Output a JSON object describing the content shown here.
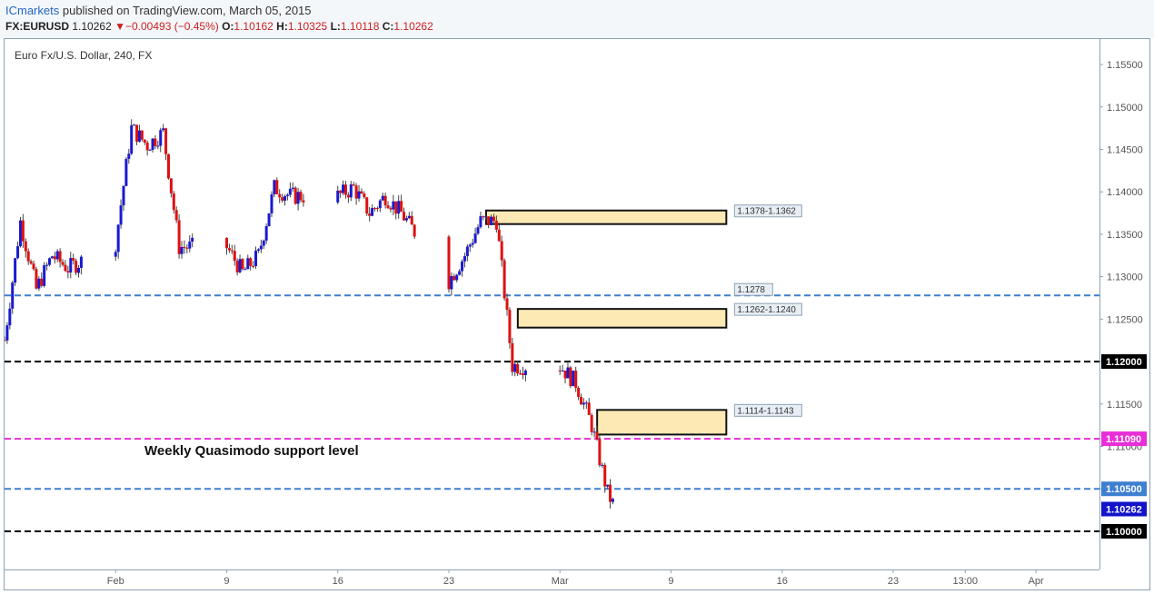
{
  "header": {
    "publisher": "ICmarkets",
    "published_text": "published on TradingView.com, March 05, 2015",
    "symbol": "FX:EURUSD",
    "last": "1.10262",
    "change_arrow": "▼",
    "change": "−0.00493 (−0.45%)",
    "o_label": "O:",
    "o_value": "1.10162",
    "h_label": "H:",
    "h_value": "1.10325",
    "l_label": "L:",
    "l_value": "1.10118",
    "c_label": "C:",
    "c_value": "1.10262"
  },
  "chart_data": {
    "type": "candlestick",
    "title": "Euro Fx/U.S. Dollar, 240, FX",
    "ylim": [
      1.0955,
      1.158
    ],
    "y_ticks": [
      "1.15500",
      "1.15000",
      "1.14500",
      "1.14000",
      "1.13500",
      "1.13000",
      "1.12500",
      "1.12000",
      "1.11500",
      "1.11000",
      "1.10500",
      "1.10000"
    ],
    "x_ticks": [
      "Feb",
      "9",
      "16",
      "23",
      "Mar",
      "9",
      "16",
      "23",
      "13:00",
      "Apr"
    ],
    "x_range": [
      "2015-01-26",
      "2015-04-05"
    ],
    "up_color": "#1a1ad0",
    "down_color": "#dd1111",
    "annotation": "Weekly Quasimodo support level",
    "levels": [
      {
        "price": 1.1278,
        "label": "1.1278",
        "color": "#3d7fd0",
        "style": "dashed"
      },
      {
        "price": 1.12,
        "label": "1.12000",
        "color": "#000000",
        "style": "dashed"
      },
      {
        "price": 1.1109,
        "label": "1.11090",
        "color": "#e82ed8",
        "style": "dashed"
      },
      {
        "price": 1.105,
        "label": "1.10500",
        "color": "#3d7fd0",
        "style": "dashed"
      },
      {
        "price": 1.1,
        "label": "1.10000",
        "color": "#000000",
        "style": "dashed"
      }
    ],
    "last_price_label": "1.10262",
    "zones": [
      {
        "label": "1.1378-1.1362",
        "low": 1.1362,
        "high": 1.1378,
        "start": "2015-02-25",
        "end": "2015-03-13"
      },
      {
        "label": "1.1262-1.1240",
        "low": 1.124,
        "high": 1.1262,
        "start": "2015-02-27",
        "end": "2015-03-13"
      },
      {
        "label": "1.1114-1.1143",
        "low": 1.1114,
        "high": 1.1143,
        "start": "2015-03-04",
        "end": "2015-03-13"
      }
    ],
    "close_path": [
      [
        "2015-01-26",
        1.1225
      ],
      [
        "2015-01-27",
        1.1365
      ],
      [
        "2015-01-28",
        1.1285
      ],
      [
        "2015-01-29",
        1.1325
      ],
      [
        "2015-01-30",
        1.131
      ],
      [
        "2015-02-02",
        1.134
      ],
      [
        "2015-02-03",
        1.1475
      ],
      [
        "2015-02-04",
        1.1455
      ],
      [
        "2015-02-05",
        1.147
      ],
      [
        "2015-02-06",
        1.1335
      ],
      [
        "2015-02-09",
        1.1335
      ],
      [
        "2015-02-10",
        1.1305
      ],
      [
        "2015-02-11",
        1.1325
      ],
      [
        "2015-02-12",
        1.1405
      ],
      [
        "2015-02-13",
        1.1395
      ],
      [
        "2015-02-16",
        1.1395
      ],
      [
        "2015-02-17",
        1.1405
      ],
      [
        "2015-02-18",
        1.1375
      ],
      [
        "2015-02-19",
        1.1395
      ],
      [
        "2015-02-20",
        1.1375
      ],
      [
        "2015-02-23",
        1.1295
      ],
      [
        "2015-02-24",
        1.1325
      ],
      [
        "2015-02-25",
        1.1365
      ],
      [
        "2015-02-26",
        1.1366
      ],
      [
        "2015-02-27",
        1.1195
      ],
      [
        "2015-03-02",
        1.1195
      ],
      [
        "2015-03-03",
        1.1175
      ],
      [
        "2015-03-04",
        1.1125
      ],
      [
        "2015-03-05",
        1.1045
      ],
      [
        "2015-03-05T12:00",
        1.10262
      ]
    ]
  }
}
